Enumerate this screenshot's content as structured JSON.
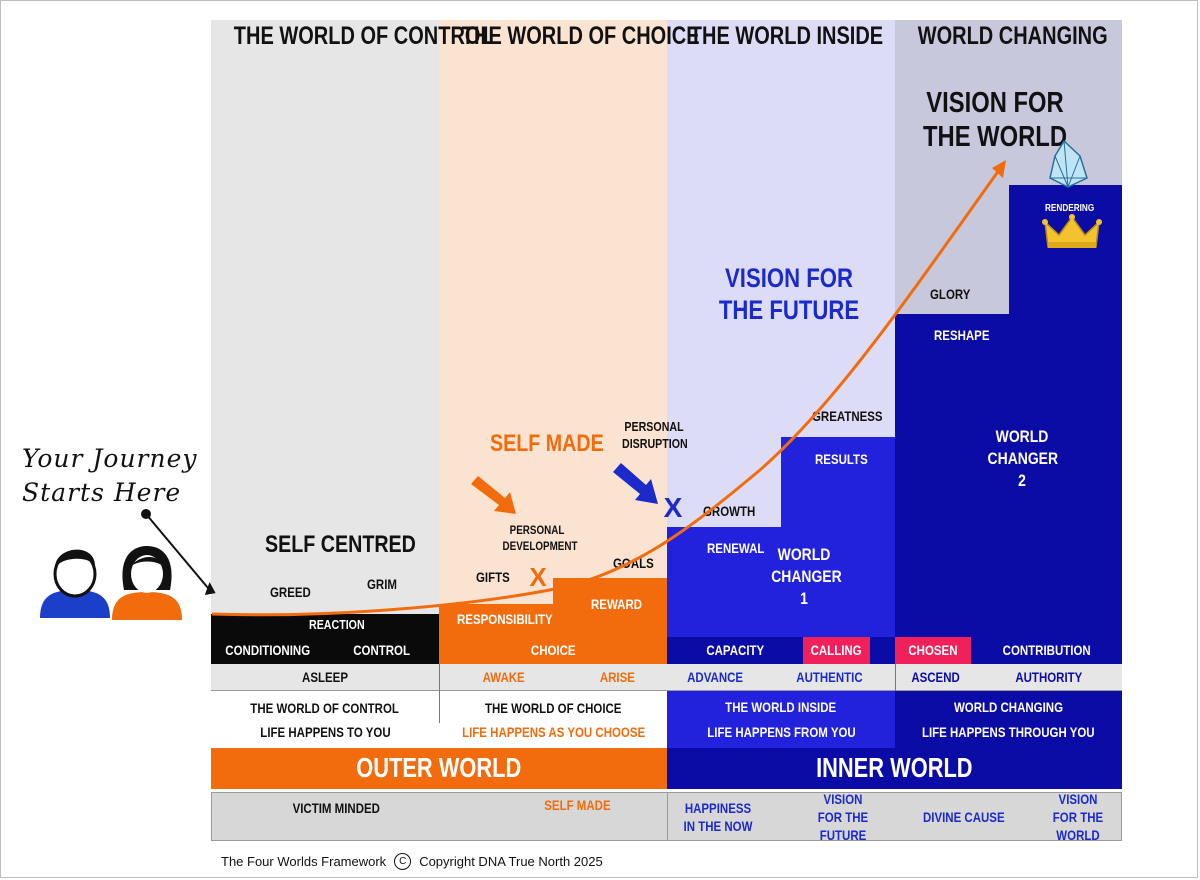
{
  "columns": {
    "control": "THE WORLD OF CONTROL",
    "choice": "THE WORLD OF CHOICE",
    "inside": "THE WORLD INSIDE",
    "changing": "WORLD CHANGING"
  },
  "colors": {
    "orange": "#f26c0d",
    "blue": "#2222dd",
    "navy": "#0b0ba6",
    "black": "#0a0a0a",
    "pink": "#f0205a",
    "gray_panel": "#e6e6e6",
    "peach_panel": "#fbe3d2",
    "lavender_panel": "#dcdcf6",
    "slate_panel": "#c8c8dc"
  },
  "journey": {
    "line1": "Your Journey",
    "line2": "Starts Here"
  },
  "labels": {
    "vision_world_top": "VISION FOR THE WORLD",
    "vision_future": "VISION FOR THE FUTURE",
    "self_made": "SELF MADE",
    "self_centred": "SELF CENTRED",
    "greed": "GREED",
    "grim": "GRIM",
    "reaction": "REACTION",
    "personal_development": "PERSONAL DEVELOPMENT",
    "gifts": "GIFTS",
    "goals": "GOALS",
    "responsibility": "RESPONSIBILITY",
    "reward": "REWARD",
    "personal_disruption": "PERSONAL DISRUPTION",
    "growth": "GROWTH",
    "renewal": "RENEWAL",
    "world_changer_1": "WORLD CHANGER 1",
    "greatness": "GREATNESS",
    "results": "RESULTS",
    "glory": "GLORY",
    "reshape": "RESHAPE",
    "world_changer_2": "WORLD CHANGER 2",
    "rendering": "RENDERING",
    "x_mark": "X"
  },
  "row1": {
    "conditioning": "CONDITIONING",
    "control": "CONTROL",
    "choice": "CHOICE",
    "capacity": "CAPACITY",
    "calling": "CALLING",
    "chosen": "CHOSEN",
    "contribution": "CONTRIBUTION"
  },
  "row2": {
    "asleep": "ASLEEP",
    "awake": "AWAKE",
    "arise": "ARISE",
    "advance": "ADVANCE",
    "authentic": "AUTHENTIC",
    "ascend": "ASCEND",
    "authority": "AUTHORITY"
  },
  "row3": {
    "control_title": "THE WORLD OF CONTROL",
    "control_sub": "LIFE HAPPENS TO YOU",
    "choice_title": "THE WORLD OF CHOICE",
    "choice_sub": "LIFE HAPPENS AS YOU CHOOSE",
    "inside_title": "THE WORLD INSIDE",
    "inside_sub": "LIFE HAPPENS FROM YOU",
    "changing_title": "WORLD CHANGING",
    "changing_sub": "LIFE HAPPENS THROUGH YOU"
  },
  "row4": {
    "outer": "OUTER WORLD",
    "inner": "INNER WORLD"
  },
  "row5": {
    "victim": "VICTIM MINDED",
    "self_made": "SELF MADE",
    "happiness": "HAPPINESS IN THE NOW",
    "vision_future": "VISION FOR THE FUTURE",
    "divine": "DIVINE CAUSE",
    "vision_world": "VISION FOR THE WORLD"
  },
  "footer": {
    "framework": "The Four Worlds Framework",
    "copyright_symbol": "C",
    "copyright": "Copyright DNA True North 2025"
  },
  "icons": [
    "person-male-icon",
    "person-female-icon",
    "diamond-icon",
    "crown-icon",
    "arrow-orange-icon",
    "arrow-blue-icon"
  ]
}
